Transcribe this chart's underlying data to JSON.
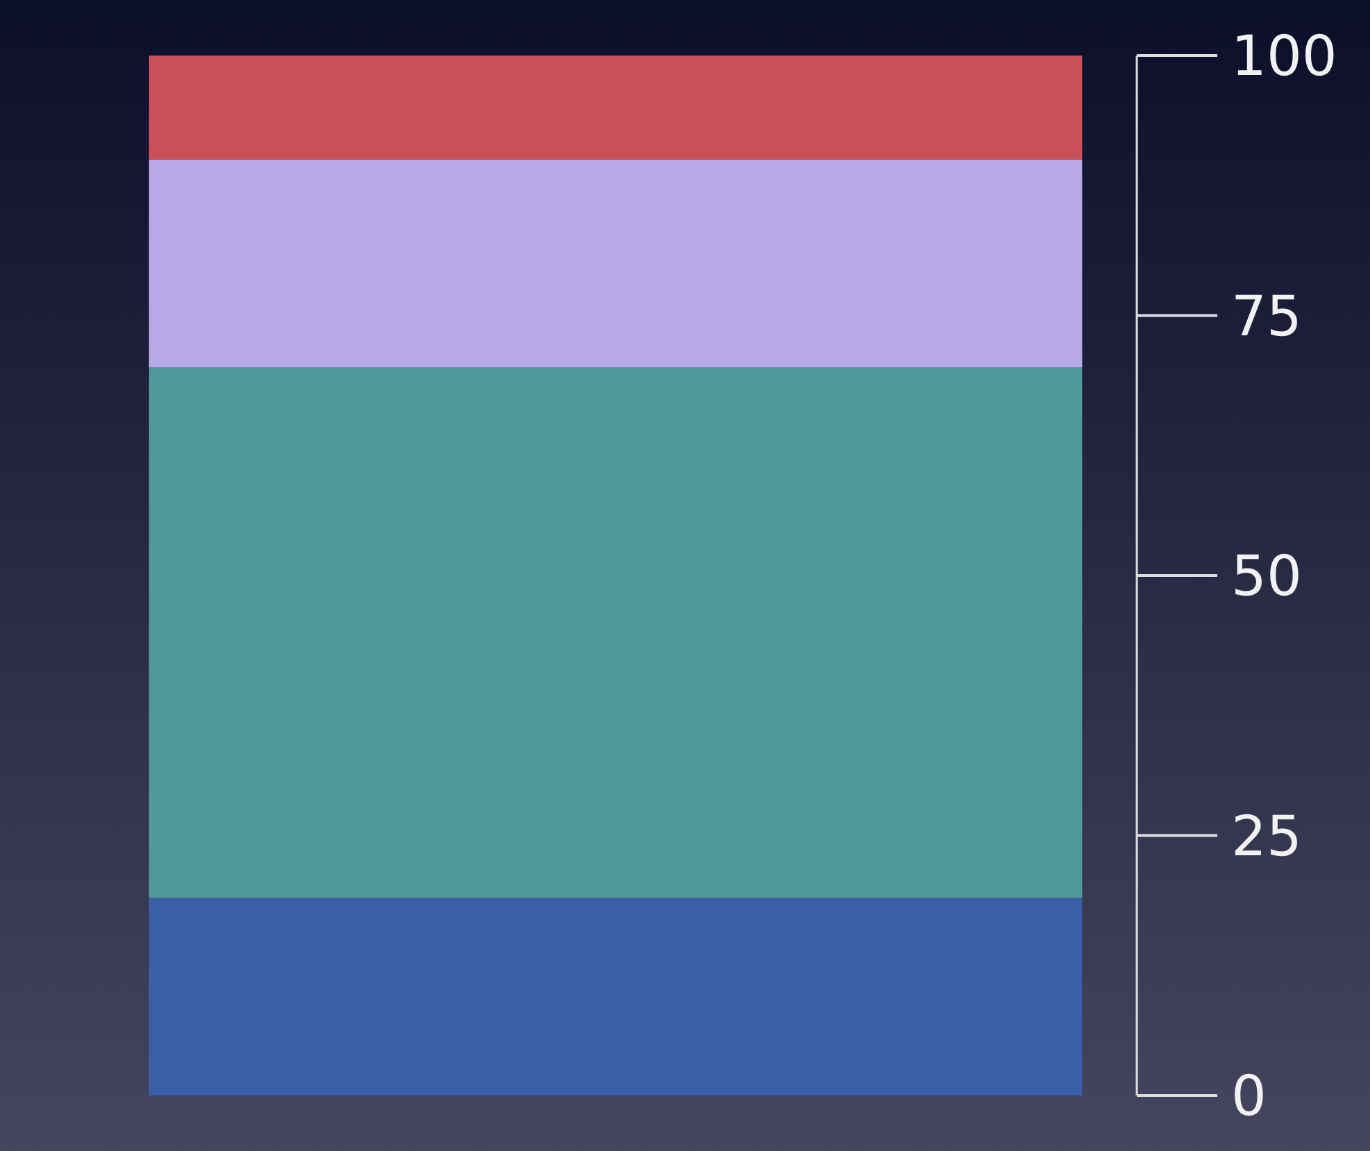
{
  "chart_data": {
    "type": "bar",
    "stacked": true,
    "categories": [
      null
    ],
    "series": [
      {
        "color": "#3a5fa8",
        "values": [
          19
        ]
      },
      {
        "color": "#4f9a98",
        "values": [
          51
        ]
      },
      {
        "color": "#b9a8e8",
        "values": [
          20
        ]
      },
      {
        "color": "#cc5058",
        "values": [
          10
        ]
      }
    ],
    "ylim": [
      0,
      100
    ],
    "yticks": [
      0,
      25,
      50,
      75,
      100
    ],
    "grid": false
  }
}
